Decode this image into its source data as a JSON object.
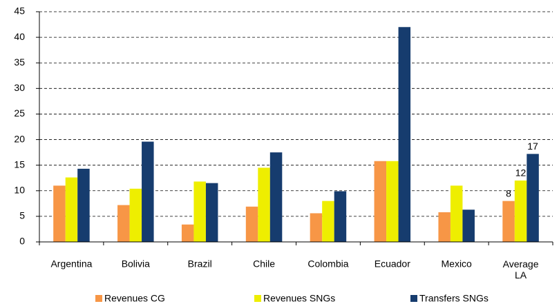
{
  "chart_data": {
    "type": "bar",
    "categories": [
      "Argentina",
      "Bolivia",
      "Brazil",
      "Chile",
      "Colombia",
      "Ecuador",
      "Mexico",
      "Average LA"
    ],
    "series": [
      {
        "name": "Revenues CG",
        "color": "#f79646",
        "values": [
          11,
          7.2,
          3.4,
          6.9,
          5.6,
          15.8,
          5.8,
          8
        ],
        "value_labels": [
          null,
          null,
          null,
          null,
          null,
          null,
          null,
          "8"
        ]
      },
      {
        "name": "Revenues SNGs",
        "color": "#eeee00",
        "values": [
          12.6,
          10.4,
          11.8,
          14.5,
          8,
          15.8,
          11,
          12
        ],
        "value_labels": [
          null,
          null,
          null,
          null,
          null,
          null,
          null,
          "12"
        ]
      },
      {
        "name": "Transfers SNGs",
        "color": "#163c6e",
        "values": [
          14.3,
          19.6,
          11.5,
          17.5,
          9.9,
          42,
          6.3,
          17.2
        ],
        "value_labels": [
          null,
          null,
          null,
          null,
          null,
          null,
          null,
          "17"
        ]
      }
    ],
    "ylim": [
      0,
      45
    ],
    "yticks": [
      0,
      5,
      10,
      15,
      20,
      25,
      30,
      35,
      40,
      45
    ],
    "grid": true,
    "legend": "bottom"
  }
}
